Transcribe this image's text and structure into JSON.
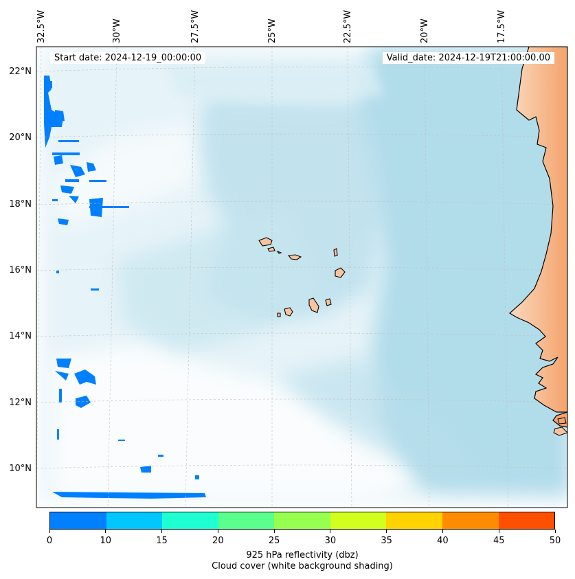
{
  "annotations": {
    "start_date": "Start date: 2024-12-19_00:00:00",
    "valid_date": "Valid_date: 2024-12-19T21:00:00.00"
  },
  "lon_labels": [
    "32.5°W",
    "30°W",
    "27.5°W",
    "25°W",
    "22.5°W",
    "20°W",
    "17.5°W"
  ],
  "lat_labels": [
    "22°N",
    "20°N",
    "18°N",
    "16°N",
    "14°N",
    "12°N",
    "10°N"
  ],
  "colorbar": {
    "ticks": [
      "0",
      "10",
      "15",
      "20",
      "25",
      "30",
      "35",
      "40",
      "45",
      "50"
    ],
    "colors": [
      "#0080ff",
      "#00c8ff",
      "#1effd2",
      "#5aff8c",
      "#96ff50",
      "#d2ff1e",
      "#ffd200",
      "#ff8c00",
      "#ff5000"
    ],
    "label_line1": "925 hPa reflectivity (dbz)",
    "label_line2": "Cloud cover (white background shading)"
  },
  "islands": [
    "Santo Antão",
    "São Vicente",
    "Santa Luzia",
    "São Nicolau",
    "Sal",
    "Boa Vista",
    "Maio",
    "Santiago",
    "Fogo",
    "Brava"
  ],
  "land_color": "#f4a36b",
  "sea_cloud_color": "#a8d8e8"
}
